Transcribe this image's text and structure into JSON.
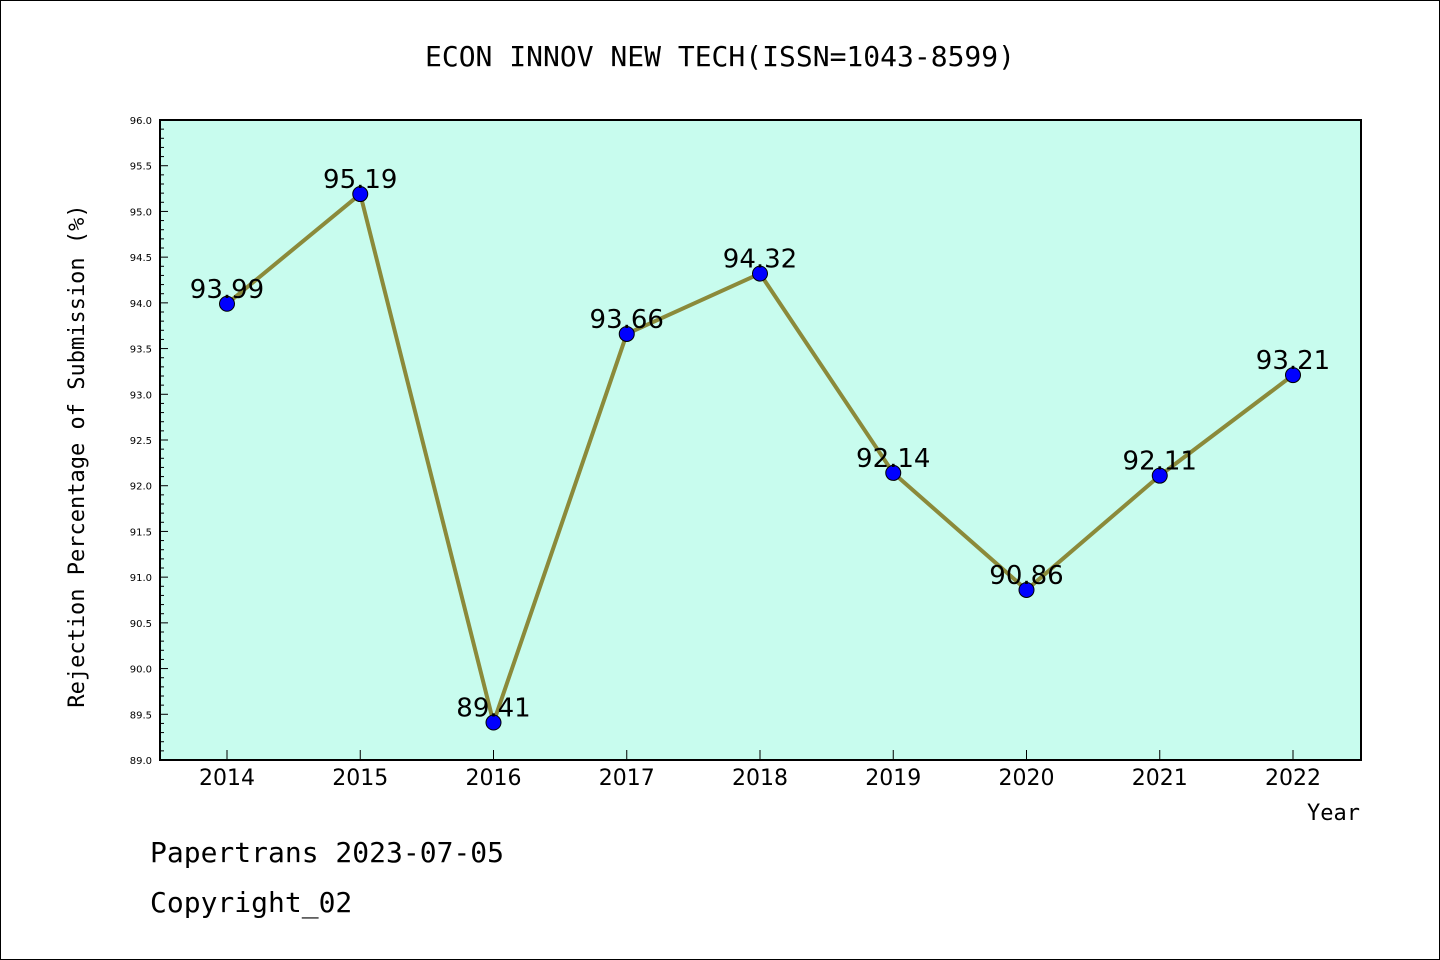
{
  "chart_data": {
    "type": "line",
    "title": "ECON INNOV NEW TECH(ISSN=1043-8599)",
    "xlabel": "Year",
    "ylabel": "Rejection Percentage of Submission (%)",
    "x": [
      "2014",
      "2015",
      "2016",
      "2017",
      "2018",
      "2019",
      "2020",
      "2021",
      "2022"
    ],
    "series": [
      {
        "values": [
          93.99,
          95.19,
          89.41,
          93.66,
          94.32,
          92.14,
          90.86,
          92.11,
          93.21
        ],
        "labels": [
          "93.99",
          "95.19",
          "89.41",
          "93.66",
          "94.32",
          "92.14",
          "90.86",
          "92.11",
          "93.21"
        ]
      }
    ],
    "ylim": [
      89.0,
      96.0
    ],
    "yticks": [
      "89.0",
      "89.5",
      "90.0",
      "90.5",
      "91.0",
      "91.5",
      "92.0",
      "92.5",
      "93.0",
      "93.5",
      "94.0",
      "94.5",
      "95.0",
      "95.5",
      "96.0"
    ],
    "grid": false,
    "colors": {
      "plot_background": "#c8fcee",
      "line": "#8b8a3a",
      "marker": "#0000ff"
    }
  },
  "footer": {
    "line1": "Papertrans 2023-07-05",
    "line2": "Copyright_02"
  }
}
